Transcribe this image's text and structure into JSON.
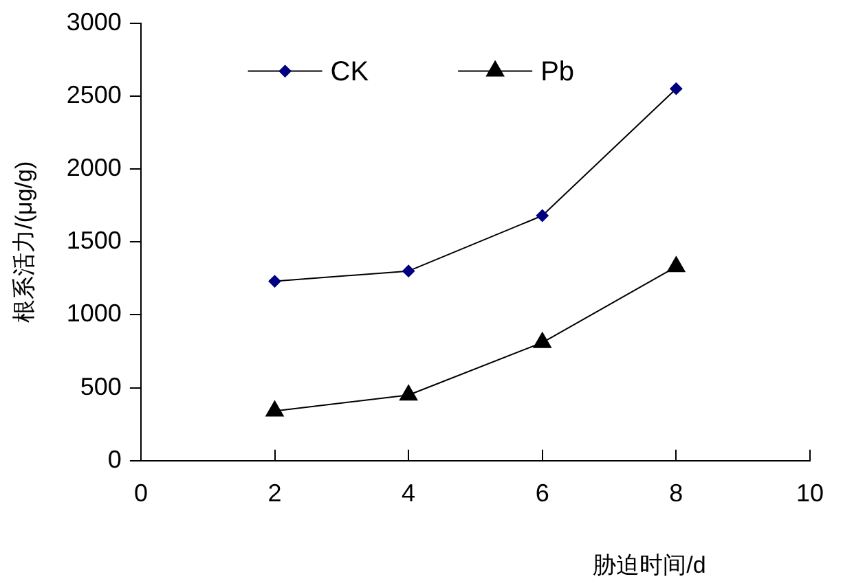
{
  "chart_data": {
    "type": "line",
    "xlabel": "胁迫时间/d",
    "ylabel": "根系活力/(μg/g)",
    "x": [
      2,
      4,
      6,
      8
    ],
    "series": [
      {
        "name": "CK",
        "color": "#000080",
        "marker": "diamond",
        "values": [
          1230,
          1300,
          1680,
          2550
        ]
      },
      {
        "name": "Pb",
        "color": "#000000",
        "marker": "triangle",
        "values": [
          340,
          450,
          810,
          1330
        ]
      }
    ],
    "xlim": [
      0,
      10
    ],
    "xticks": [
      0,
      2,
      4,
      6,
      8,
      10
    ],
    "ylim": [
      0,
      3000
    ],
    "yticks": [
      0,
      500,
      1000,
      1500,
      2000,
      2500,
      3000
    ],
    "grid": false,
    "legend": "top",
    "line_style": "solid"
  }
}
